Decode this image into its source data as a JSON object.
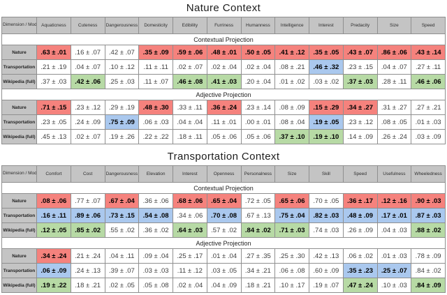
{
  "colors": {
    "red": "#F5827D",
    "blue": "#AAC8EE",
    "green": "#B7DAA5",
    "header_bg": "#C4C4C4",
    "border": "#8F8F8F"
  },
  "tables": [
    {
      "title": "Nature Context",
      "corner_header": "Dimension /\nModel",
      "columns": [
        "Aquaticness",
        "Cuteness",
        "Dangerousness",
        "Domesticity",
        "Edibility",
        "Furriness",
        "Humanness",
        "Intelligence",
        "Interest",
        "Predacity",
        "Size",
        "Speed"
      ],
      "sections": [
        {
          "label": "Contextual Projection",
          "rows": [
            {
              "label": "Nature",
              "values": [
                ".63 ± .01",
                ".16 ± .07",
                ".42 ± .07",
                ".35 ± .09",
                ".59 ± .06",
                ".48 ± .01",
                ".50 ± .05",
                ".41 ± .12",
                ".35 ± .05",
                ".43 ± .07",
                ".86 ± .06",
                ".43 ± .14"
              ],
              "highlights": [
                "red",
                "",
                "",
                "red",
                "red",
                "red",
                "red",
                "red",
                "red",
                "red",
                "red",
                "red"
              ]
            },
            {
              "label": "Transportation",
              "values": [
                ".21 ± .19",
                ".04 ± .07",
                ".10 ± .12",
                ".11 ± .11",
                ".02 ± .07",
                ".02 ± .04",
                ".02 ± .04",
                ".08 ± .21",
                ".46 ± .32",
                ".23 ± .15",
                ".04 ± .07",
                ".27 ± .11"
              ],
              "highlights": [
                "",
                "",
                "",
                "",
                "",
                "",
                "",
                "",
                "blue",
                "",
                "",
                ""
              ]
            },
            {
              "label": "Wikipedia (full)",
              "values": [
                ".37 ± .03",
                ".42 ± .06",
                ".25 ± .03",
                ".11 ± .07",
                ".46 ± .08",
                ".41 ± .03",
                ".20 ± .04",
                ".01 ± .02",
                ".03 ± .02",
                ".37 ± .03",
                ".28 ± .11",
                ".46 ± .06"
              ],
              "highlights": [
                "",
                "green",
                "",
                "",
                "green",
                "green",
                "",
                "",
                "",
                "green",
                "",
                "green"
              ]
            }
          ]
        },
        {
          "label": "Adjective Projection",
          "rows": [
            {
              "label": "Nature",
              "values": [
                ".71 ± .15",
                ".23 ± .12",
                ".29 ± .19",
                ".48 ± .30",
                ".33 ± .11",
                ".36 ± .24",
                ".23 ± .14",
                ".08 ± .09",
                ".15 ± .29",
                ".34 ± .27",
                ".31 ± .27",
                ".27 ± .21"
              ],
              "highlights": [
                "red",
                "",
                "",
                "red",
                "",
                "red",
                "",
                "",
                "red",
                "red",
                "",
                ""
              ]
            },
            {
              "label": "Transportation",
              "values": [
                ".23 ± .05",
                ".24 ± .09",
                ".75 ± .09",
                ".06 ± .03",
                ".04 ± .04",
                ".11 ± .01",
                ".00 ± .01",
                ".08 ± .04",
                ".19 ± .05",
                ".23 ± .12",
                ".08 ± .05",
                ".01 ± .03"
              ],
              "highlights": [
                "",
                "",
                "blue",
                "",
                "",
                "",
                "",
                "",
                "blue",
                "",
                "",
                ""
              ]
            },
            {
              "label": "Wikipedia (full)",
              "values": [
                ".45 ± .13",
                ".02 ± .07",
                ".19 ± .26",
                ".22 ± .22",
                ".18 ± .11",
                ".05 ± .06",
                ".05 ± .06",
                ".37 ± .10",
                ".19 ± .10",
                ".14 ± .09",
                ".26 ± .24",
                ".03 ± .09"
              ],
              "highlights": [
                "",
                "",
                "",
                "",
                "",
                "",
                "",
                "green",
                "green",
                "",
                "",
                ""
              ]
            }
          ]
        }
      ]
    },
    {
      "title": "Transportation Context",
      "corner_header": "Dimension /\nModel",
      "columns": [
        "Comfort",
        "Cost",
        "Dangerousness",
        "Elevation",
        "Interest",
        "Openness",
        "Personalness",
        "Size",
        "Skill",
        "Speed",
        "Usefulness",
        "Wheeledness"
      ],
      "sections": [
        {
          "label": "Contextual Projection",
          "rows": [
            {
              "label": "Nature",
              "values": [
                ".08 ± .06",
                ".77 ± .07",
                ".67 ± .04",
                ".36 ± .06",
                ".68 ± .06",
                ".65 ± .04",
                ".72 ± .05",
                ".65 ± .06",
                ".70 ± .05",
                ".36 ± .17",
                ".12 ± .16",
                ".90 ± .03"
              ],
              "highlights": [
                "red",
                "",
                "red",
                "",
                "red",
                "red",
                "",
                "red",
                "",
                "red",
                "red",
                "red"
              ]
            },
            {
              "label": "Transportation",
              "values": [
                ".16 ± .11",
                ".89 ± .06",
                ".73 ± .15",
                ".54 ± .08",
                ".34 ± .06",
                ".70 ± .08",
                ".67 ± .13",
                ".75 ± .04",
                ".82 ± .03",
                ".48 ± .09",
                ".17 ± .01",
                ".87 ± .03"
              ],
              "highlights": [
                "blue",
                "blue",
                "blue",
                "blue",
                "",
                "blue",
                "",
                "blue",
                "blue",
                "blue",
                "blue",
                "blue"
              ]
            },
            {
              "label": "Wikipedia (full)",
              "values": [
                ".12 ± .05",
                ".85 ± .02",
                ".55 ± .02",
                ".36 ± .02",
                ".64 ± .03",
                ".57 ± .02",
                ".84 ± .02",
                ".71 ± .03",
                ".74 ± .03",
                ".26 ± .09",
                ".04 ± .03",
                ".88 ± .02"
              ],
              "highlights": [
                "green",
                "green",
                "",
                "",
                "green",
                "",
                "green",
                "green",
                "",
                "",
                "",
                "green"
              ]
            }
          ]
        },
        {
          "label": "Adjective Projection",
          "rows": [
            {
              "label": "Nature",
              "values": [
                ".34 ± .24",
                ".21 ± .24",
                ".04 ± .11",
                ".09 ± .04",
                ".25 ± .17",
                ".01 ± .04",
                ".27 ± .35",
                ".25 ± .30",
                ".42 ± .13",
                ".06 ± .02",
                ".01 ± .03",
                ".78 ± .09"
              ],
              "highlights": [
                "red",
                "",
                "",
                "",
                "",
                "",
                "",
                "",
                "",
                "",
                "",
                ""
              ]
            },
            {
              "label": "Transportation",
              "values": [
                ".06 ± .09",
                ".24 ± .13",
                ".39 ± .07",
                ".03 ± .03",
                ".11 ± .12",
                ".03 ± .05",
                ".34 ± .21",
                ".06 ± .08",
                ".60 ± .09",
                ".35 ± .23",
                ".25 ± .07",
                ".84 ± .02"
              ],
              "highlights": [
                "blue",
                "",
                "",
                "",
                "",
                "",
                "",
                "",
                "",
                "blue",
                "blue",
                ""
              ]
            },
            {
              "label": "Wikipedia (full)",
              "values": [
                ".19 ± .22",
                ".18 ± .21",
                ".02 ± .05",
                ".05 ± .08",
                ".02 ± .04",
                ".04 ± .09",
                ".18 ± .21",
                ".10 ± .17",
                ".19 ± .07",
                ".47 ± .24",
                ".10 ± .03",
                ".84 ± .09"
              ],
              "highlights": [
                "green",
                "",
                "",
                "",
                "",
                "",
                "",
                "",
                "",
                "green",
                "",
                "green"
              ]
            }
          ]
        }
      ]
    }
  ],
  "layout": {
    "label_col_width": "50px"
  }
}
